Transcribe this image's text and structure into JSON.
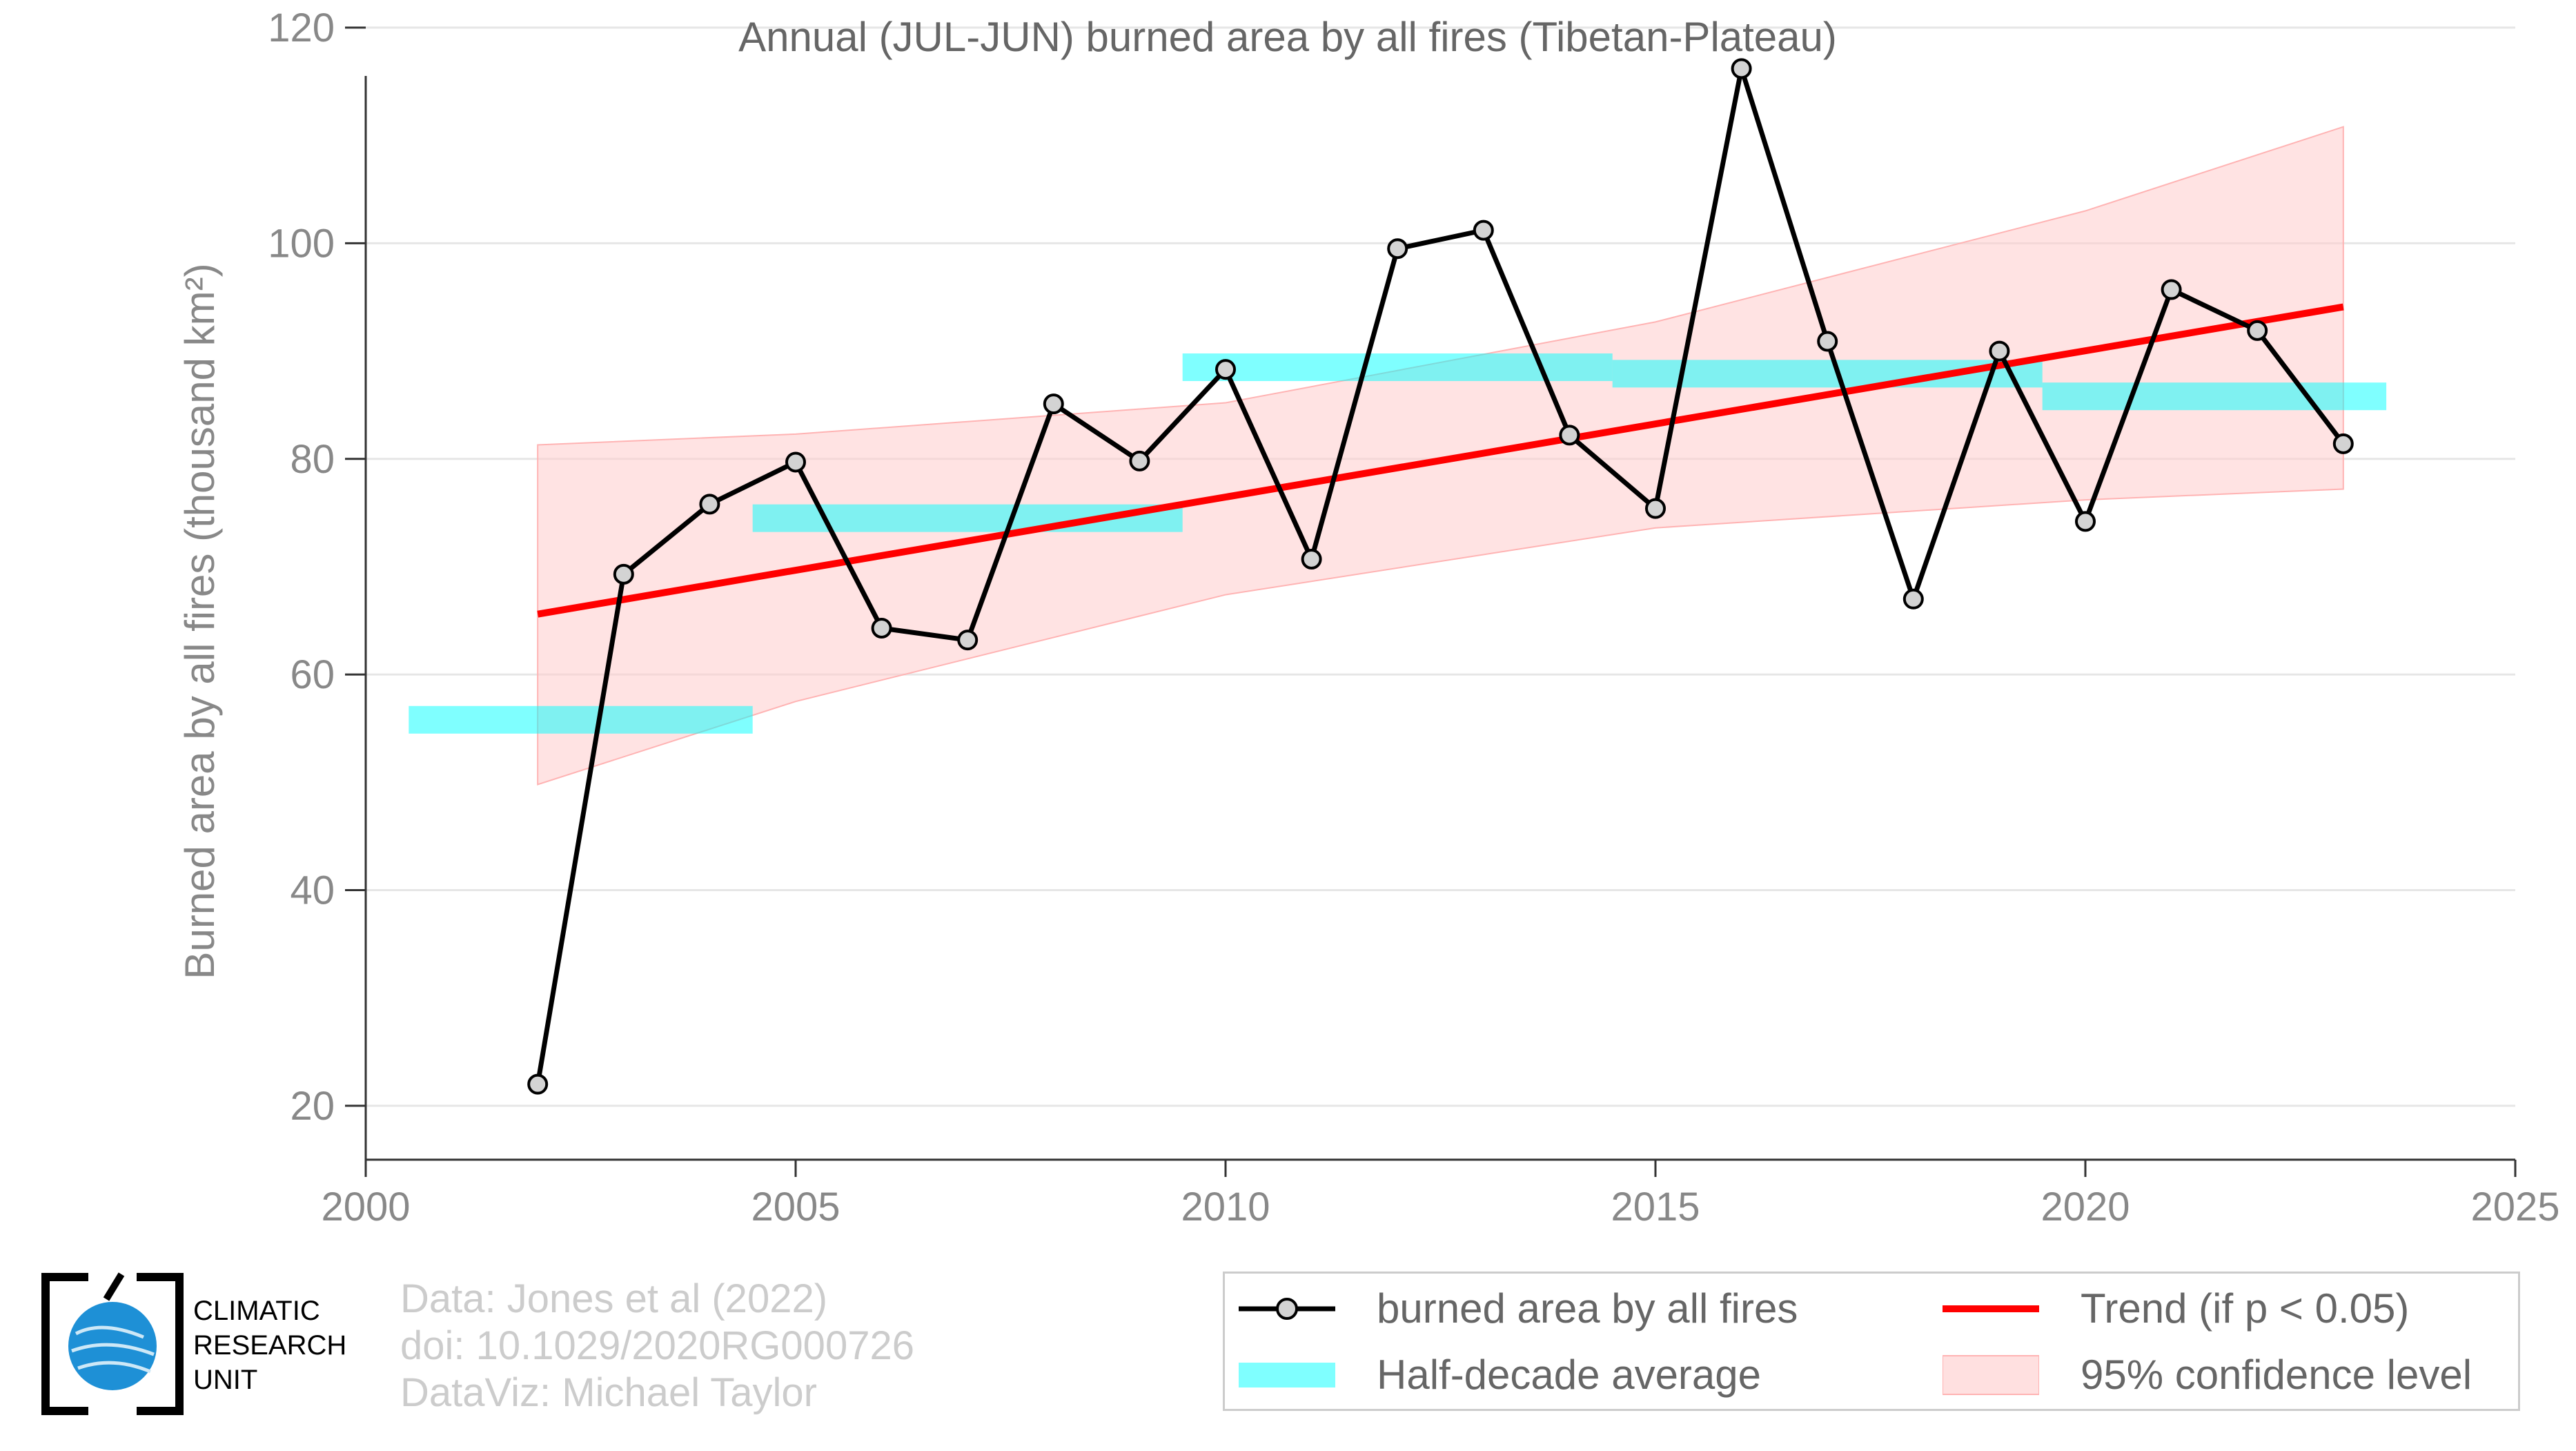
{
  "chart_data": {
    "type": "line",
    "title": "Annual (JUL-JUN) burned area by all fires (Tibetan-Plateau)",
    "xlabel": "",
    "ylabel": "Burned area by all fires (thousand km²)",
    "xlim": [
      2000,
      2025
    ],
    "ylim": [
      15,
      120
    ],
    "xticks": [
      2000,
      2005,
      2010,
      2015,
      2020,
      2025
    ],
    "yticks": [
      20,
      40,
      60,
      80,
      100,
      120
    ],
    "grid": "horizontal",
    "legend_position": "bottom-right",
    "series": [
      {
        "name": "burned area by all fires",
        "color": "#000000",
        "x": [
          2002,
          2003,
          2004,
          2005,
          2006,
          2007,
          2008,
          2009,
          2010,
          2011,
          2012,
          2013,
          2014,
          2015,
          2016,
          2017,
          2018,
          2019,
          2020,
          2021,
          2022,
          2023
        ],
        "y": [
          22.0,
          69.3,
          75.8,
          79.7,
          64.3,
          63.2,
          85.1,
          79.8,
          88.3,
          70.7,
          99.5,
          101.2,
          82.2,
          75.4,
          116.2,
          90.9,
          67.0,
          90.0,
          74.2,
          95.7,
          91.9,
          81.4
        ]
      }
    ],
    "half_decade_average": {
      "name": "Half-decade average",
      "color": "#00ffff",
      "segments": [
        {
          "x_start": 2000.5,
          "x_end": 2004.5,
          "value": 55.8
        },
        {
          "x_start": 2004.5,
          "x_end": 2009.5,
          "value": 74.5
        },
        {
          "x_start": 2009.5,
          "x_end": 2014.5,
          "value": 88.5
        },
        {
          "x_start": 2014.5,
          "x_end": 2019.5,
          "value": 87.9
        },
        {
          "x_start": 2019.5,
          "x_end": 2023.5,
          "value": 85.8
        }
      ]
    },
    "trend": {
      "name": "Trend (if p < 0.05)",
      "color": "#ff0000",
      "x": [
        2002,
        2023
      ],
      "y": [
        65.6,
        94.1
      ]
    },
    "confidence_band": {
      "name": "95% confidence level",
      "color": "#ffcccc",
      "x": [
        2002,
        2005,
        2010,
        2015,
        2020,
        2023
      ],
      "lower": [
        49.8,
        57.5,
        67.4,
        73.6,
        76.2,
        77.2
      ],
      "upper": [
        81.3,
        82.3,
        85.2,
        92.7,
        103.0,
        110.8
      ]
    }
  },
  "credits": {
    "line1": "Data: Jones et al (2022)",
    "line2": "doi: 10.1029/2020RG000726",
    "line3": "DataViz: Michael Taylor"
  },
  "logo": {
    "line1": "CLIMATIC",
    "line2": "RESEARCH",
    "line3": "UNIT"
  },
  "legend": {
    "series_label": "burned area by all fires",
    "trend_label": "Trend (if p < 0.05)",
    "average_label": "Half-decade average",
    "confidence_label": "95% confidence level"
  }
}
